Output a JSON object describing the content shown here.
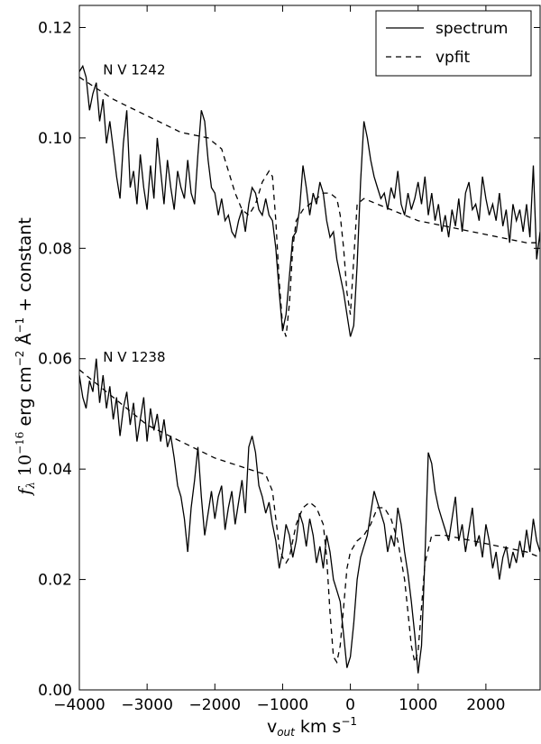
{
  "chart_data": {
    "type": "line",
    "xlabel_main": "v",
    "xlabel_sub": "out",
    "xlabel_units": " km s",
    "xlabel_exp": "−1",
    "ylabel_f": "f",
    "ylabel_lambda": "λ",
    "ylabel_scale": "10",
    "ylabel_scale_exp": "−16",
    "ylabel_units": "erg cm",
    "ylabel_cm_exp": "−2",
    "ylabel_angstrom": "Å",
    "ylabel_a_exp": "−1",
    "ylabel_suffix": "+ constant",
    "xlim": [
      -4000,
      2800
    ],
    "ylim": [
      0.0,
      0.124
    ],
    "xticks": [
      -4000,
      -3000,
      -2000,
      -1000,
      0,
      1000,
      2000
    ],
    "xtick_labels": [
      "−4000",
      "−3000",
      "−2000",
      "−1000",
      "0",
      "1000",
      "2000"
    ],
    "yticks": [
      0.0,
      0.02,
      0.04,
      0.06,
      0.08,
      0.1,
      0.12
    ],
    "ytick_labels": [
      "0.00",
      "0.02",
      "0.04",
      "0.06",
      "0.08",
      "0.10",
      "0.12"
    ],
    "grid": false,
    "legend_position": "top-right",
    "annotations": [
      {
        "text": "N V 1242",
        "x": -3650,
        "y": 0.1115
      },
      {
        "text": "N V 1238",
        "x": -3650,
        "y": 0.0595
      }
    ],
    "series": [
      {
        "name": "spectrum",
        "style": "solid",
        "x": [
          -4000,
          -3950,
          -3900,
          -3850,
          -3800,
          -3750,
          -3700,
          -3650,
          -3600,
          -3550,
          -3500,
          -3450,
          -3400,
          -3350,
          -3300,
          -3250,
          -3200,
          -3150,
          -3100,
          -3050,
          -3000,
          -2950,
          -2900,
          -2850,
          -2800,
          -2750,
          -2700,
          -2650,
          -2600,
          -2550,
          -2500,
          -2450,
          -2400,
          -2350,
          -2300,
          -2250,
          -2200,
          -2150,
          -2100,
          -2050,
          -2000,
          -1950,
          -1900,
          -1850,
          -1800,
          -1750,
          -1700,
          -1650,
          -1600,
          -1550,
          -1500,
          -1450,
          -1400,
          -1350,
          -1300,
          -1250,
          -1200,
          -1150,
          -1100,
          -1050,
          -1000,
          -950,
          -900,
          -850,
          -800,
          -750,
          -700,
          -650,
          -600,
          -550,
          -500,
          -450,
          -400,
          -350,
          -300,
          -250,
          -200,
          -150,
          -100,
          -50,
          0,
          50,
          100,
          150,
          200,
          250,
          300,
          350,
          400,
          450,
          500,
          550,
          600,
          650,
          700,
          750,
          800,
          850,
          900,
          950,
          1000,
          1050,
          1100,
          1150,
          1200,
          1250,
          1300,
          1350,
          1400,
          1450,
          1500,
          1550,
          1600,
          1650,
          1700,
          1750,
          1800,
          1850,
          1900,
          1950,
          2000,
          2050,
          2100,
          2150,
          2200,
          2250,
          2300,
          2350,
          2400,
          2450,
          2500,
          2550,
          2600,
          2650,
          2700,
          2750,
          2800
        ],
        "y": [
          0.112,
          0.113,
          0.111,
          0.105,
          0.108,
          0.11,
          0.103,
          0.107,
          0.099,
          0.103,
          0.098,
          0.093,
          0.089,
          0.099,
          0.105,
          0.091,
          0.094,
          0.088,
          0.097,
          0.091,
          0.087,
          0.095,
          0.089,
          0.1,
          0.094,
          0.088,
          0.096,
          0.091,
          0.087,
          0.094,
          0.091,
          0.089,
          0.096,
          0.09,
          0.088,
          0.097,
          0.105,
          0.103,
          0.096,
          0.091,
          0.09,
          0.086,
          0.089,
          0.085,
          0.086,
          0.083,
          0.082,
          0.085,
          0.087,
          0.083,
          0.088,
          0.091,
          0.09,
          0.087,
          0.086,
          0.089,
          0.086,
          0.085,
          0.08,
          0.072,
          0.065,
          0.068,
          0.075,
          0.082,
          0.083,
          0.087,
          0.095,
          0.091,
          0.086,
          0.09,
          0.088,
          0.092,
          0.09,
          0.085,
          0.082,
          0.083,
          0.078,
          0.075,
          0.072,
          0.068,
          0.064,
          0.066,
          0.077,
          0.092,
          0.103,
          0.1,
          0.096,
          0.093,
          0.091,
          0.089,
          0.09,
          0.087,
          0.091,
          0.089,
          0.094,
          0.088,
          0.086,
          0.09,
          0.087,
          0.089,
          0.092,
          0.088,
          0.093,
          0.086,
          0.09,
          0.085,
          0.088,
          0.083,
          0.086,
          0.082,
          0.087,
          0.084,
          0.089,
          0.083,
          0.09,
          0.092,
          0.087,
          0.088,
          0.085,
          0.093,
          0.089,
          0.086,
          0.088,
          0.085,
          0.09,
          0.084,
          0.087,
          0.081,
          0.088,
          0.085,
          0.087,
          0.083,
          0.088,
          0.082,
          0.095,
          0.078,
          0.083
        ]
      },
      {
        "name": "vpfit",
        "style": "dashed",
        "x": [
          -4000,
          -3500,
          -3000,
          -2500,
          -2100,
          -1900,
          -1800,
          -1700,
          -1600,
          -1500,
          -1400,
          -1300,
          -1200,
          -1150,
          -1100,
          -1050,
          -1000,
          -950,
          -900,
          -850,
          -800,
          -700,
          -600,
          -500,
          -400,
          -300,
          -200,
          -150,
          -100,
          -50,
          0,
          50,
          100,
          200,
          400,
          600,
          800,
          1000,
          1400,
          1800,
          2200,
          2600,
          2800
        ],
        "y": [
          0.111,
          0.107,
          0.104,
          0.101,
          0.1,
          0.098,
          0.094,
          0.09,
          0.087,
          0.086,
          0.088,
          0.092,
          0.094,
          0.093,
          0.085,
          0.074,
          0.066,
          0.064,
          0.07,
          0.08,
          0.085,
          0.087,
          0.088,
          0.089,
          0.09,
          0.09,
          0.089,
          0.086,
          0.08,
          0.072,
          0.068,
          0.078,
          0.088,
          0.089,
          0.088,
          0.087,
          0.086,
          0.085,
          0.084,
          0.083,
          0.082,
          0.081,
          0.081
        ]
      },
      {
        "name": "spectrum",
        "style": "solid",
        "x": [
          -4000,
          -3950,
          -3900,
          -3850,
          -3800,
          -3750,
          -3700,
          -3650,
          -3600,
          -3550,
          -3500,
          -3450,
          -3400,
          -3350,
          -3300,
          -3250,
          -3200,
          -3150,
          -3100,
          -3050,
          -3000,
          -2950,
          -2900,
          -2850,
          -2800,
          -2750,
          -2700,
          -2650,
          -2600,
          -2550,
          -2500,
          -2450,
          -2400,
          -2350,
          -2300,
          -2250,
          -2200,
          -2150,
          -2100,
          -2050,
          -2000,
          -1950,
          -1900,
          -1850,
          -1800,
          -1750,
          -1700,
          -1650,
          -1600,
          -1550,
          -1500,
          -1450,
          -1400,
          -1350,
          -1300,
          -1250,
          -1200,
          -1150,
          -1100,
          -1050,
          -1000,
          -950,
          -900,
          -850,
          -800,
          -750,
          -700,
          -650,
          -600,
          -550,
          -500,
          -450,
          -400,
          -350,
          -300,
          -250,
          -200,
          -150,
          -100,
          -50,
          0,
          50,
          100,
          150,
          200,
          250,
          300,
          350,
          400,
          450,
          500,
          550,
          600,
          650,
          700,
          750,
          800,
          850,
          900,
          950,
          1000,
          1050,
          1100,
          1150,
          1200,
          1250,
          1300,
          1350,
          1400,
          1450,
          1500,
          1550,
          1600,
          1650,
          1700,
          1750,
          1800,
          1850,
          1900,
          1950,
          2000,
          2050,
          2100,
          2150,
          2200,
          2250,
          2300,
          2350,
          2400,
          2450,
          2500,
          2550,
          2600,
          2650,
          2700,
          2750,
          2800
        ],
        "y": [
          0.057,
          0.053,
          0.051,
          0.056,
          0.054,
          0.06,
          0.052,
          0.057,
          0.051,
          0.055,
          0.049,
          0.053,
          0.046,
          0.051,
          0.054,
          0.048,
          0.052,
          0.045,
          0.049,
          0.053,
          0.045,
          0.051,
          0.047,
          0.05,
          0.045,
          0.049,
          0.044,
          0.046,
          0.042,
          0.037,
          0.035,
          0.031,
          0.025,
          0.033,
          0.038,
          0.044,
          0.035,
          0.028,
          0.032,
          0.036,
          0.031,
          0.035,
          0.037,
          0.029,
          0.033,
          0.036,
          0.03,
          0.034,
          0.038,
          0.032,
          0.044,
          0.046,
          0.043,
          0.037,
          0.035,
          0.032,
          0.034,
          0.03,
          0.027,
          0.022,
          0.025,
          0.03,
          0.028,
          0.024,
          0.027,
          0.032,
          0.03,
          0.026,
          0.031,
          0.028,
          0.023,
          0.026,
          0.022,
          0.028,
          0.025,
          0.02,
          0.018,
          0.016,
          0.01,
          0.004,
          0.006,
          0.012,
          0.02,
          0.024,
          0.026,
          0.028,
          0.032,
          0.036,
          0.034,
          0.032,
          0.03,
          0.025,
          0.028,
          0.026,
          0.033,
          0.03,
          0.025,
          0.021,
          0.016,
          0.01,
          0.003,
          0.008,
          0.024,
          0.043,
          0.041,
          0.036,
          0.033,
          0.031,
          0.029,
          0.027,
          0.031,
          0.035,
          0.027,
          0.03,
          0.025,
          0.029,
          0.033,
          0.026,
          0.028,
          0.024,
          0.03,
          0.027,
          0.022,
          0.025,
          0.02,
          0.024,
          0.026,
          0.022,
          0.025,
          0.023,
          0.027,
          0.024,
          0.029,
          0.025,
          0.031,
          0.027,
          0.025
        ]
      },
      {
        "name": "vpfit",
        "style": "dashed",
        "x": [
          -4000,
          -3500,
          -3000,
          -2500,
          -2000,
          -1500,
          -1250,
          -1150,
          -1100,
          -1050,
          -1000,
          -950,
          -900,
          -850,
          -800,
          -700,
          -600,
          -500,
          -400,
          -350,
          -300,
          -250,
          -200,
          -150,
          -100,
          -50,
          0,
          50,
          100,
          200,
          300,
          400,
          500,
          600,
          700,
          800,
          850,
          900,
          950,
          1000,
          1050,
          1100,
          1200,
          1400,
          1800,
          2200,
          2600,
          2800
        ],
        "y": [
          0.058,
          0.053,
          0.048,
          0.045,
          0.042,
          0.04,
          0.039,
          0.036,
          0.031,
          0.026,
          0.024,
          0.023,
          0.024,
          0.027,
          0.03,
          0.033,
          0.034,
          0.033,
          0.03,
          0.024,
          0.014,
          0.006,
          0.005,
          0.008,
          0.015,
          0.022,
          0.025,
          0.026,
          0.027,
          0.028,
          0.03,
          0.033,
          0.033,
          0.031,
          0.027,
          0.02,
          0.014,
          0.008,
          0.005,
          0.007,
          0.015,
          0.023,
          0.028,
          0.028,
          0.027,
          0.026,
          0.025,
          0.024
        ]
      }
    ]
  }
}
